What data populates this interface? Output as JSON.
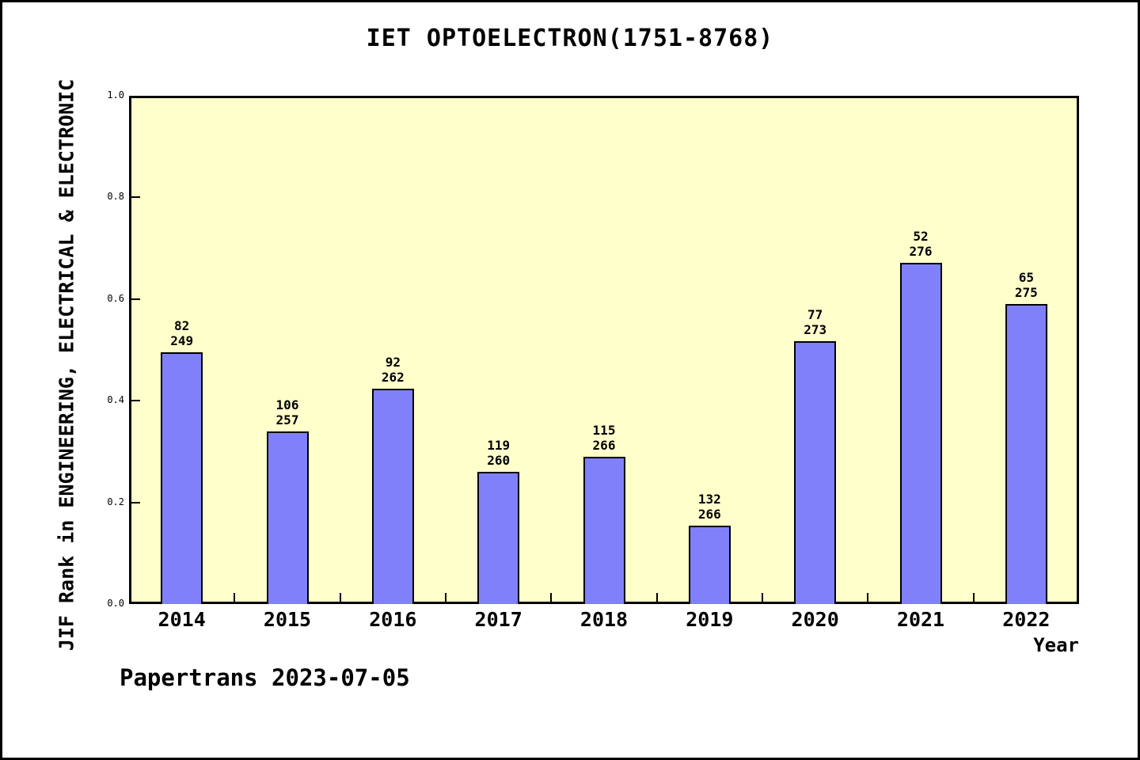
{
  "footer": "Papertrans 2023-07-05",
  "chart_data": {
    "type": "bar",
    "title": "IET OPTOELECTRON(1751-8768)",
    "xlabel": "Year",
    "ylabel": "JIF Rank in ENGINEERING, ELECTRICAL & ELECTRONIC",
    "categories": [
      "2014",
      "2015",
      "2016",
      "2017",
      "2018",
      "2019",
      "2020",
      "2021",
      "2022"
    ],
    "values": [
      0.495,
      0.34,
      0.424,
      0.26,
      0.29,
      0.154,
      0.517,
      0.672,
      0.59
    ],
    "bar_labels": [
      {
        "rank": "82",
        "total": "249"
      },
      {
        "rank": "106",
        "total": "257"
      },
      {
        "rank": "92",
        "total": "262"
      },
      {
        "rank": "119",
        "total": "260"
      },
      {
        "rank": "115",
        "total": "266"
      },
      {
        "rank": "132",
        "total": "266"
      },
      {
        "rank": "77",
        "total": "273"
      },
      {
        "rank": "52",
        "total": "276"
      },
      {
        "rank": "65",
        "total": "275"
      }
    ],
    "ylim": [
      0.0,
      1.0
    ],
    "yticks": [
      "0.0",
      "0.2",
      "0.4",
      "0.6",
      "0.8",
      "1.0"
    ],
    "grid": false,
    "colors": {
      "bar_fill": "#8080FA",
      "bar_edge": "#000000",
      "plot_bg": "#FFFFCC",
      "page_bg": "#FFFFFF",
      "text": "#000000",
      "frame": "#000000"
    }
  }
}
